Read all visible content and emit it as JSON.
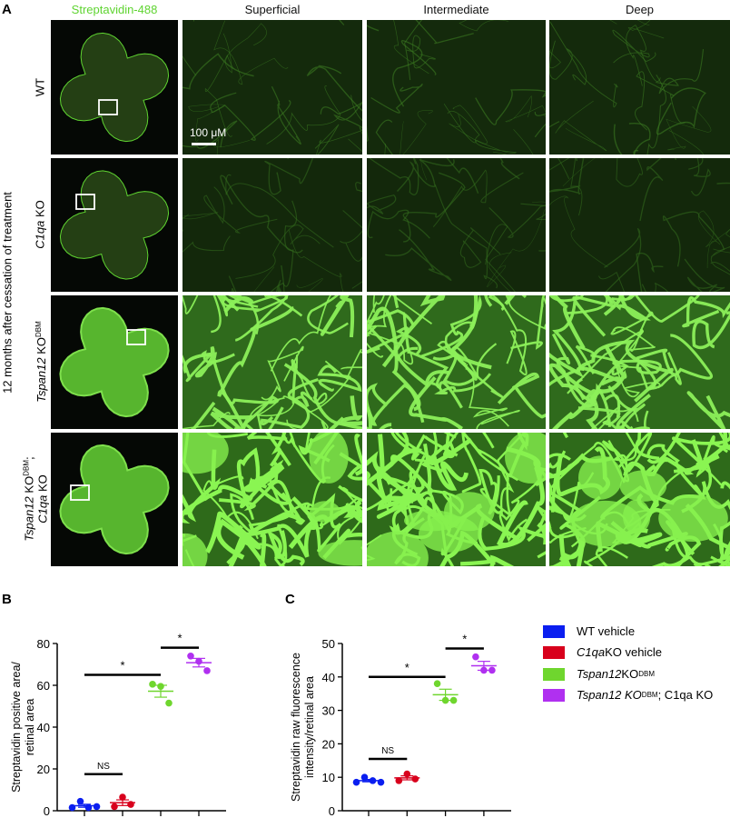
{
  "panel_a": {
    "letter": "A",
    "column_headers": [
      "Streptavidin-488",
      "Superficial",
      "Intermediate",
      "Deep"
    ],
    "side_label": "12 months after cessation of treatment",
    "scale_bar": "100 μM",
    "rows": [
      {
        "gene": "",
        "text": "WT",
        "sup": "",
        "line2_gene": "",
        "line2_text": ""
      },
      {
        "gene": "C1qa",
        "text": " KO",
        "sup": "",
        "line2_gene": "",
        "line2_text": ""
      },
      {
        "gene": "Tspan12",
        "text": " KO",
        "sup": "DBM",
        "line2_gene": "",
        "line2_text": ""
      },
      {
        "gene": "Tspan12",
        "text": " KO",
        "sup": "DBM",
        "suffix": ";",
        "line2_gene": "C1qa",
        "line2_text": " KO"
      }
    ]
  },
  "legend": [
    {
      "gene": "",
      "text": "WT vehicle",
      "sup": "",
      "rest": "",
      "color": "#0a1ef0"
    },
    {
      "gene": "C1qa",
      "text": " KO vehicle",
      "sup": "",
      "rest": "",
      "color": "#d8001c"
    },
    {
      "gene": "Tspan12",
      "text": " KO",
      "sup": "DBM",
      "rest": "",
      "color": "#6fd62e"
    },
    {
      "gene": "Tspan12 KO",
      "text": "",
      "sup": "DBM",
      "rest": "; C1qa KO",
      "color": "#b030f0"
    }
  ],
  "chart_data": [
    {
      "type": "scatter",
      "panel": "B",
      "ylabel": [
        "Streptavidin positive area/",
        "retinal area"
      ],
      "ylim": [
        0,
        80
      ],
      "yticks": [
        0,
        20,
        40,
        60,
        80
      ],
      "groups": [
        "WT vehicle",
        "C1qa KO vehicle",
        "Tspan12 KO DBM",
        "Tspan12 KO DBM; C1qa KO"
      ],
      "colors": [
        "#0a1ef0",
        "#d8001c",
        "#6fd62e",
        "#b030f0"
      ],
      "series": [
        {
          "values": [
            1.5,
            4.5,
            1.5,
            2
          ]
        },
        {
          "values": [
            2,
            6.5,
            3
          ]
        },
        {
          "values": [
            60.5,
            59.5,
            51.5
          ]
        },
        {
          "values": [
            74,
            71.5,
            67
          ]
        }
      ],
      "annotations": [
        {
          "from": 0,
          "to": 1,
          "label": "NS",
          "y": 17.5
        },
        {
          "from": 0,
          "to": 2,
          "label": "*",
          "y": 65
        },
        {
          "from": 2,
          "to": 3,
          "label": "*",
          "y": 78
        }
      ]
    },
    {
      "type": "scatter",
      "panel": "C",
      "ylabel": [
        "Streptavidin raw fluorescence",
        "intensity/retinal area"
      ],
      "ylim": [
        0,
        50
      ],
      "yticks": [
        0,
        10,
        20,
        30,
        40,
        50
      ],
      "groups": [
        "WT vehicle",
        "C1qa KO vehicle",
        "Tspan12 KO DBM",
        "Tspan12 KO DBM; C1qa KO"
      ],
      "colors": [
        "#0a1ef0",
        "#d8001c",
        "#6fd62e",
        "#b030f0"
      ],
      "series": [
        {
          "values": [
            8.5,
            10,
            9,
            8.5
          ]
        },
        {
          "values": [
            9,
            11,
            9.5
          ]
        },
        {
          "values": [
            38,
            33,
            33
          ]
        },
        {
          "values": [
            46,
            42,
            42
          ]
        }
      ],
      "annotations": [
        {
          "from": 0,
          "to": 1,
          "label": "NS",
          "y": 15.5
        },
        {
          "from": 0,
          "to": 2,
          "label": "*",
          "y": 40
        },
        {
          "from": 2,
          "to": 3,
          "label": "*",
          "y": 48.5
        }
      ]
    }
  ]
}
